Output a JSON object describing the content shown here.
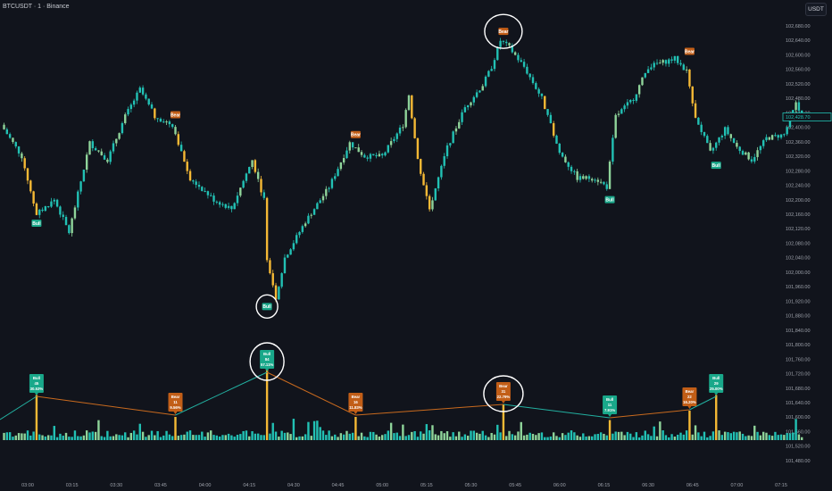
{
  "header": {
    "title": "BTCUSDT · 1 · Binance",
    "currency": "USDT"
  },
  "colors": {
    "background": "#11141c",
    "teal": "#22c1b4",
    "light_green": "#8fd49a",
    "yellow": "#f5b935",
    "bear_label": "#c25e17",
    "bull_label": "#19a88a",
    "bear_line": "#c96a1e",
    "bull_line": "#22b0a0"
  },
  "chart_data": [
    {
      "type": "candlestick",
      "symbol": "BTCUSDT",
      "interval": "1",
      "exchange": "Binance",
      "ylim": [
        101460,
        102700
      ],
      "yticks": [
        "102,680.00",
        "102,640.00",
        "102,600.00",
        "102,560.00",
        "102,520.00",
        "102,480.00",
        "102,440.00",
        "102,400.00",
        "102,360.00",
        "102,320.00",
        "102,280.00",
        "102,240.00",
        "102,200.00",
        "102,160.00",
        "102,120.00",
        "102,080.00",
        "102,040.00",
        "102,000.00",
        "101,960.00",
        "101,920.00",
        "101,880.00",
        "101,840.00",
        "101,800.00",
        "101,760.00",
        "101,720.00",
        "101,680.00",
        "101,640.00",
        "101,600.00",
        "101,560.00",
        "101,520.00",
        "101,480.00"
      ],
      "xticks": [
        "03:00",
        "03:15",
        "03:30",
        "03:45",
        "04:00",
        "04:15",
        "04:30",
        "04:45",
        "05:00",
        "05:15",
        "05:30",
        "05:45",
        "06:00",
        "06:15",
        "06:30",
        "06:45",
        "07:00",
        "07:15"
      ],
      "last_price": "102,428.70",
      "close_path": [
        [
          "02:51",
          102407
        ],
        [
          "02:58",
          102320
        ],
        [
          "03:03",
          102160
        ],
        [
          "03:09",
          102200
        ],
        [
          "03:14",
          102110
        ],
        [
          "03:21",
          102357
        ],
        [
          "03:27",
          102310
        ],
        [
          "03:33",
          102430
        ],
        [
          "03:38",
          102505
        ],
        [
          "03:43",
          102430
        ],
        [
          "03:49",
          102407
        ],
        [
          "03:55",
          102260
        ],
        [
          "04:03",
          102200
        ],
        [
          "04:09",
          102175
        ],
        [
          "04:16",
          102310
        ],
        [
          "04:20",
          102200
        ],
        [
          "04:21",
          102040
        ],
        [
          "04:24",
          101930
        ],
        [
          "04:27",
          102040
        ],
        [
          "04:34",
          102140
        ],
        [
          "04:42",
          102235
        ],
        [
          "04:49",
          102357
        ],
        [
          "04:54",
          102320
        ],
        [
          "05:00",
          102320
        ],
        [
          "05:07",
          102407
        ],
        [
          "05:09",
          102490
        ],
        [
          "05:12",
          102310
        ],
        [
          "05:16",
          102175
        ],
        [
          "05:22",
          102345
        ],
        [
          "05:28",
          102455
        ],
        [
          "05:34",
          102517
        ],
        [
          "05:37",
          102567
        ],
        [
          "05:40",
          102640
        ],
        [
          "05:43",
          102620
        ],
        [
          "05:48",
          102567
        ],
        [
          "05:54",
          102480
        ],
        [
          "06:00",
          102330
        ],
        [
          "06:06",
          102260
        ],
        [
          "06:12",
          102260
        ],
        [
          "06:16",
          102235
        ],
        [
          "06:19",
          102430
        ],
        [
          "06:25",
          102480
        ],
        [
          "06:30",
          102567
        ],
        [
          "06:39",
          102590
        ],
        [
          "06:43",
          102555
        ],
        [
          "06:46",
          102430
        ],
        [
          "06:51",
          102330
        ],
        [
          "06:56",
          102395
        ],
        [
          "07:00",
          102345
        ],
        [
          "07:05",
          102310
        ],
        [
          "07:10",
          102370
        ],
        [
          "07:16",
          102380
        ],
        [
          "07:20",
          102465
        ],
        [
          "07:22",
          102428.7
        ]
      ],
      "price_signals": [
        {
          "time": "03:03",
          "type": "Bull",
          "label": "Bull",
          "price": 102160
        },
        {
          "time": "03:50",
          "type": "Bear",
          "label": "Bear",
          "price": 102420
        },
        {
          "time": "04:21",
          "type": "Bull",
          "label": "Bull",
          "price": 101930,
          "circled": true
        },
        {
          "time": "04:51",
          "type": "Bear",
          "label": "Bear",
          "price": 102365
        },
        {
          "time": "05:41",
          "type": "Bear",
          "label": "Bear",
          "price": 102650,
          "circled": true
        },
        {
          "time": "06:17",
          "type": "Bull",
          "label": "Bull",
          "price": 102225
        },
        {
          "time": "06:44",
          "type": "Bear",
          "label": "Bear",
          "price": 102595
        },
        {
          "time": "06:53",
          "type": "Bull",
          "label": "Bull",
          "price": 102320
        }
      ]
    },
    {
      "type": "bar",
      "name": "volume",
      "signals": [
        {
          "time": "03:03",
          "type": "Bull",
          "label": "Bull",
          "count": "45",
          "pct": "30.53%",
          "level": 0.55
        },
        {
          "time": "03:50",
          "type": "Bear",
          "label": "Bear",
          "count": "11",
          "pct": "9.56%",
          "level": 0.2
        },
        {
          "time": "04:21",
          "type": "Bull",
          "label": "Bull",
          "count": "84",
          "pct": "57.11%",
          "level": 1.0,
          "circled": true
        },
        {
          "time": "04:51",
          "type": "Bear",
          "label": "Bear",
          "count": "16",
          "pct": "11.83%",
          "level": 0.2
        },
        {
          "time": "05:41",
          "type": "Bear",
          "label": "Bear",
          "count": "31",
          "pct": "22.79%",
          "level": 0.4,
          "circled": true
        },
        {
          "time": "06:17",
          "type": "Bull",
          "label": "Bull",
          "count": "11",
          "pct": "7.91%",
          "level": 0.15
        },
        {
          "time": "06:44",
          "type": "Bear",
          "label": "Bear",
          "count": "22",
          "pct": "16.20%",
          "level": 0.3
        },
        {
          "time": "06:53",
          "type": "Bull",
          "label": "Bull",
          "count": "29",
          "pct": "25.00%",
          "level": 0.55
        }
      ]
    }
  ]
}
